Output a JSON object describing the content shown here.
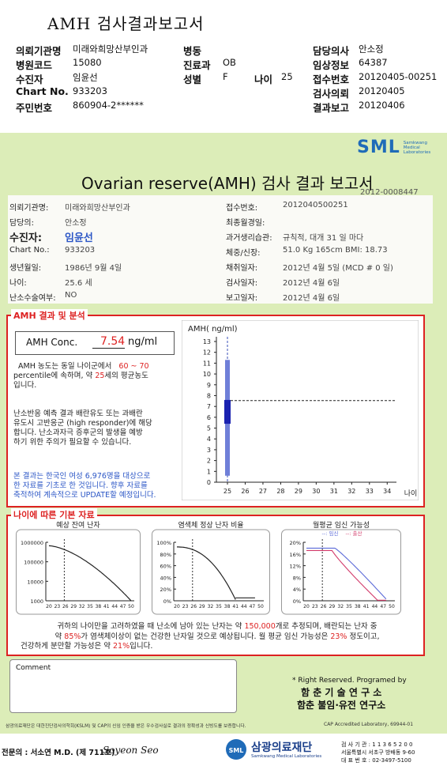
{
  "header": {
    "title": "AMH 검사결과보고서",
    "rows": [
      {
        "l1": "의뢰기관명",
        "v1": "미래와희망산부인과",
        "l2": "병동",
        "v2": "",
        "l3": "담당의사",
        "v3": "안소정"
      },
      {
        "l1": "병원코드",
        "v1": "15080",
        "l2": "진료과",
        "v2": "OB",
        "l3": "임상정보",
        "v3": "64387"
      },
      {
        "l1": "수진자",
        "v1": "임윤선",
        "l2": "성별",
        "v2": "F",
        "l3": "접수번호",
        "v3": "20120405-00251"
      },
      {
        "l1": "Chart No.",
        "v1": "933203",
        "l2": "",
        "v2": "",
        "l3": "검사의뢰",
        "v3": "20120405"
      },
      {
        "l1": "주민번호",
        "v1": "860904-2******",
        "l2": "",
        "v2": "",
        "l3": "결과보고",
        "v3": "20120406"
      }
    ],
    "age_label": "나이",
    "age_value": "25"
  },
  "brand": {
    "logo": "SML",
    "sub1": "Samkwang",
    "sub2": "Medical",
    "sub3": "Laboratories"
  },
  "report": {
    "title": "Ovarian reserve(AMH) 검사 결과 보고서",
    "number": "2012-0008447",
    "left": [
      {
        "label": "의뢰기관명:",
        "value": "미래와희망산부인과"
      },
      {
        "label": "담당의:",
        "value": "안소정"
      },
      {
        "label": "수진자:",
        "value": "임윤선"
      },
      {
        "label": "Chart No.:",
        "value": "933203"
      },
      {
        "label": "생년월일:",
        "value": "1986년 9월 4일"
      },
      {
        "label": "나이:",
        "value": "25.6 세"
      },
      {
        "label": "난소수술여부:",
        "value": "NO"
      }
    ],
    "right": [
      {
        "label": "접수번호:",
        "value": "2012040500251"
      },
      {
        "label": "최종월경일:",
        "value": ""
      },
      {
        "label": "과거생리습관:",
        "value": "규칙적, 대개   31 일 마다"
      },
      {
        "label": "체중/신장:",
        "value": "51.0 Kg   165cm    BMI: 18.73"
      },
      {
        "label": "채취일자:",
        "value": "2012년 4월 5일    (MCD # 0 일)"
      },
      {
        "label": "검사일자:",
        "value": "2012년 4월 6일"
      },
      {
        "label": "보고일자:",
        "value": "2012년 4월 6일"
      }
    ]
  },
  "amh": {
    "section": "AMH 결과 및 분석",
    "conc_label": "AMH Conc.",
    "conc_value": "7.54",
    "conc_unit": "ng/ml",
    "p1a": "AMH 농도는 동일 나이군에서",
    "pct": "60 ~ 70",
    "p1b": "percentile에 속하며, 약",
    "age_eq": "25",
    "p1c": "세의 평균농도",
    "p1d": "입니다.",
    "p2": [
      "난소반응 예측 결과 배란유도 또는 과배란",
      "유도시 고반응군 (high responder)에 해당",
      "합니다. 난소과자극 증후군의 발생을 예방",
      "하기 위한 주의가 필요할 수 있습니다."
    ],
    "p3": [
      "본 결과는 한국인 여성 6,976명을 대상으로",
      "한 자료를 기초로 한 것입니다. 향후 자료를",
      "축적하여 계속적으로 UPDATE할 예정입니다."
    ]
  },
  "chart_data": [
    {
      "type": "box",
      "ylabel": "AMH( ng/ml)",
      "xlabel": "나이",
      "x_ticks": [
        25,
        26,
        27,
        28,
        29,
        30,
        31,
        32,
        33,
        34
      ],
      "ylim": [
        0,
        13
      ],
      "y_ticks": [
        0,
        1,
        2,
        3,
        4,
        5,
        6,
        7,
        8,
        9,
        10,
        11,
        12,
        13
      ],
      "box": {
        "age": 25,
        "min": 0.6,
        "q1": 5.4,
        "q3": 7.6,
        "max": 11.3
      },
      "result": {
        "age": 25,
        "value": 7.54
      }
    },
    {
      "type": "line",
      "title": "예상 잔여 난자",
      "y_ticks": [
        "1000000",
        "100000",
        "10000",
        "1000"
      ],
      "x_ticks": [
        20,
        23,
        26,
        29,
        32,
        35,
        38,
        41,
        44,
        47,
        50
      ],
      "marker_age": 25.6
    },
    {
      "type": "line",
      "title": "염색체 정상 난자 비율",
      "y_ticks": [
        "100%",
        "80%",
        "60%",
        "40%",
        "20%",
        "0%"
      ],
      "x_ticks": [
        20,
        23,
        26,
        29,
        32,
        35,
        38,
        41,
        44,
        47,
        50
      ],
      "marker_age": 25.6
    },
    {
      "type": "line",
      "title": "월평균 임신 가능성",
      "legend": [
        "--: 임신",
        "--: 출산"
      ],
      "y_ticks": [
        "20%",
        "16%",
        "12%",
        "8%",
        "4%",
        "0%"
      ],
      "x_ticks": [
        20,
        23,
        26,
        29,
        32,
        35,
        38,
        41,
        44,
        47,
        50
      ],
      "marker_age": 25.6,
      "series": [
        {
          "name": "임신",
          "color": "#5b6ad8"
        },
        {
          "name": "출산",
          "color": "#d23a6a"
        }
      ]
    }
  ],
  "age_section": {
    "title": "나이에 따른 기본 자료",
    "t1": "귀하의 나이만을 고려하였을 때 난소에 남아 있는 난자는 약",
    "eggs": "150,000",
    "t2": "개로 추정되며, 배란되는 난자 중",
    "t3": "약",
    "normal": "85%",
    "t4": "가 염색체이상이 없는 건강한 난자일 것으로 예상됩니다. 월 평균 임신 가능성은",
    "preg": "23%",
    "t5": "정도이고,",
    "t6": "건강하게 분만할 가능성은 약",
    "birth": "21%",
    "t7": "입니다."
  },
  "comment": {
    "label": "Comment"
  },
  "footer": {
    "rights": "* Right Reserved. Programed by",
    "org1": "함 춘 기 술 연 구 소",
    "org2": "함춘 불임·유전 연구소",
    "cert": "삼광의료재단은 대한진단검사의학회(KSLM) 및 CAP의 신임 인증을 받은 우수검사실로 결과의 정확성과 신빙도를 보증합니다.",
    "cap": "CAP  Accredited  Laboratory,  69944-01",
    "doctor": "전문의 : 서소연 M.D. (제 711호)",
    "signature": "Soyeon Seo",
    "foundation": "삼광의료재단",
    "foundation_en": "Samkwang Medical Laboratories",
    "reg": "검 사 기 관 : 1 1 3 6 5 2 0 0",
    "addr": "서울특별시 서초구 방배동 9-60",
    "tel": "대 표 번 호 : 02-3497-5100"
  }
}
